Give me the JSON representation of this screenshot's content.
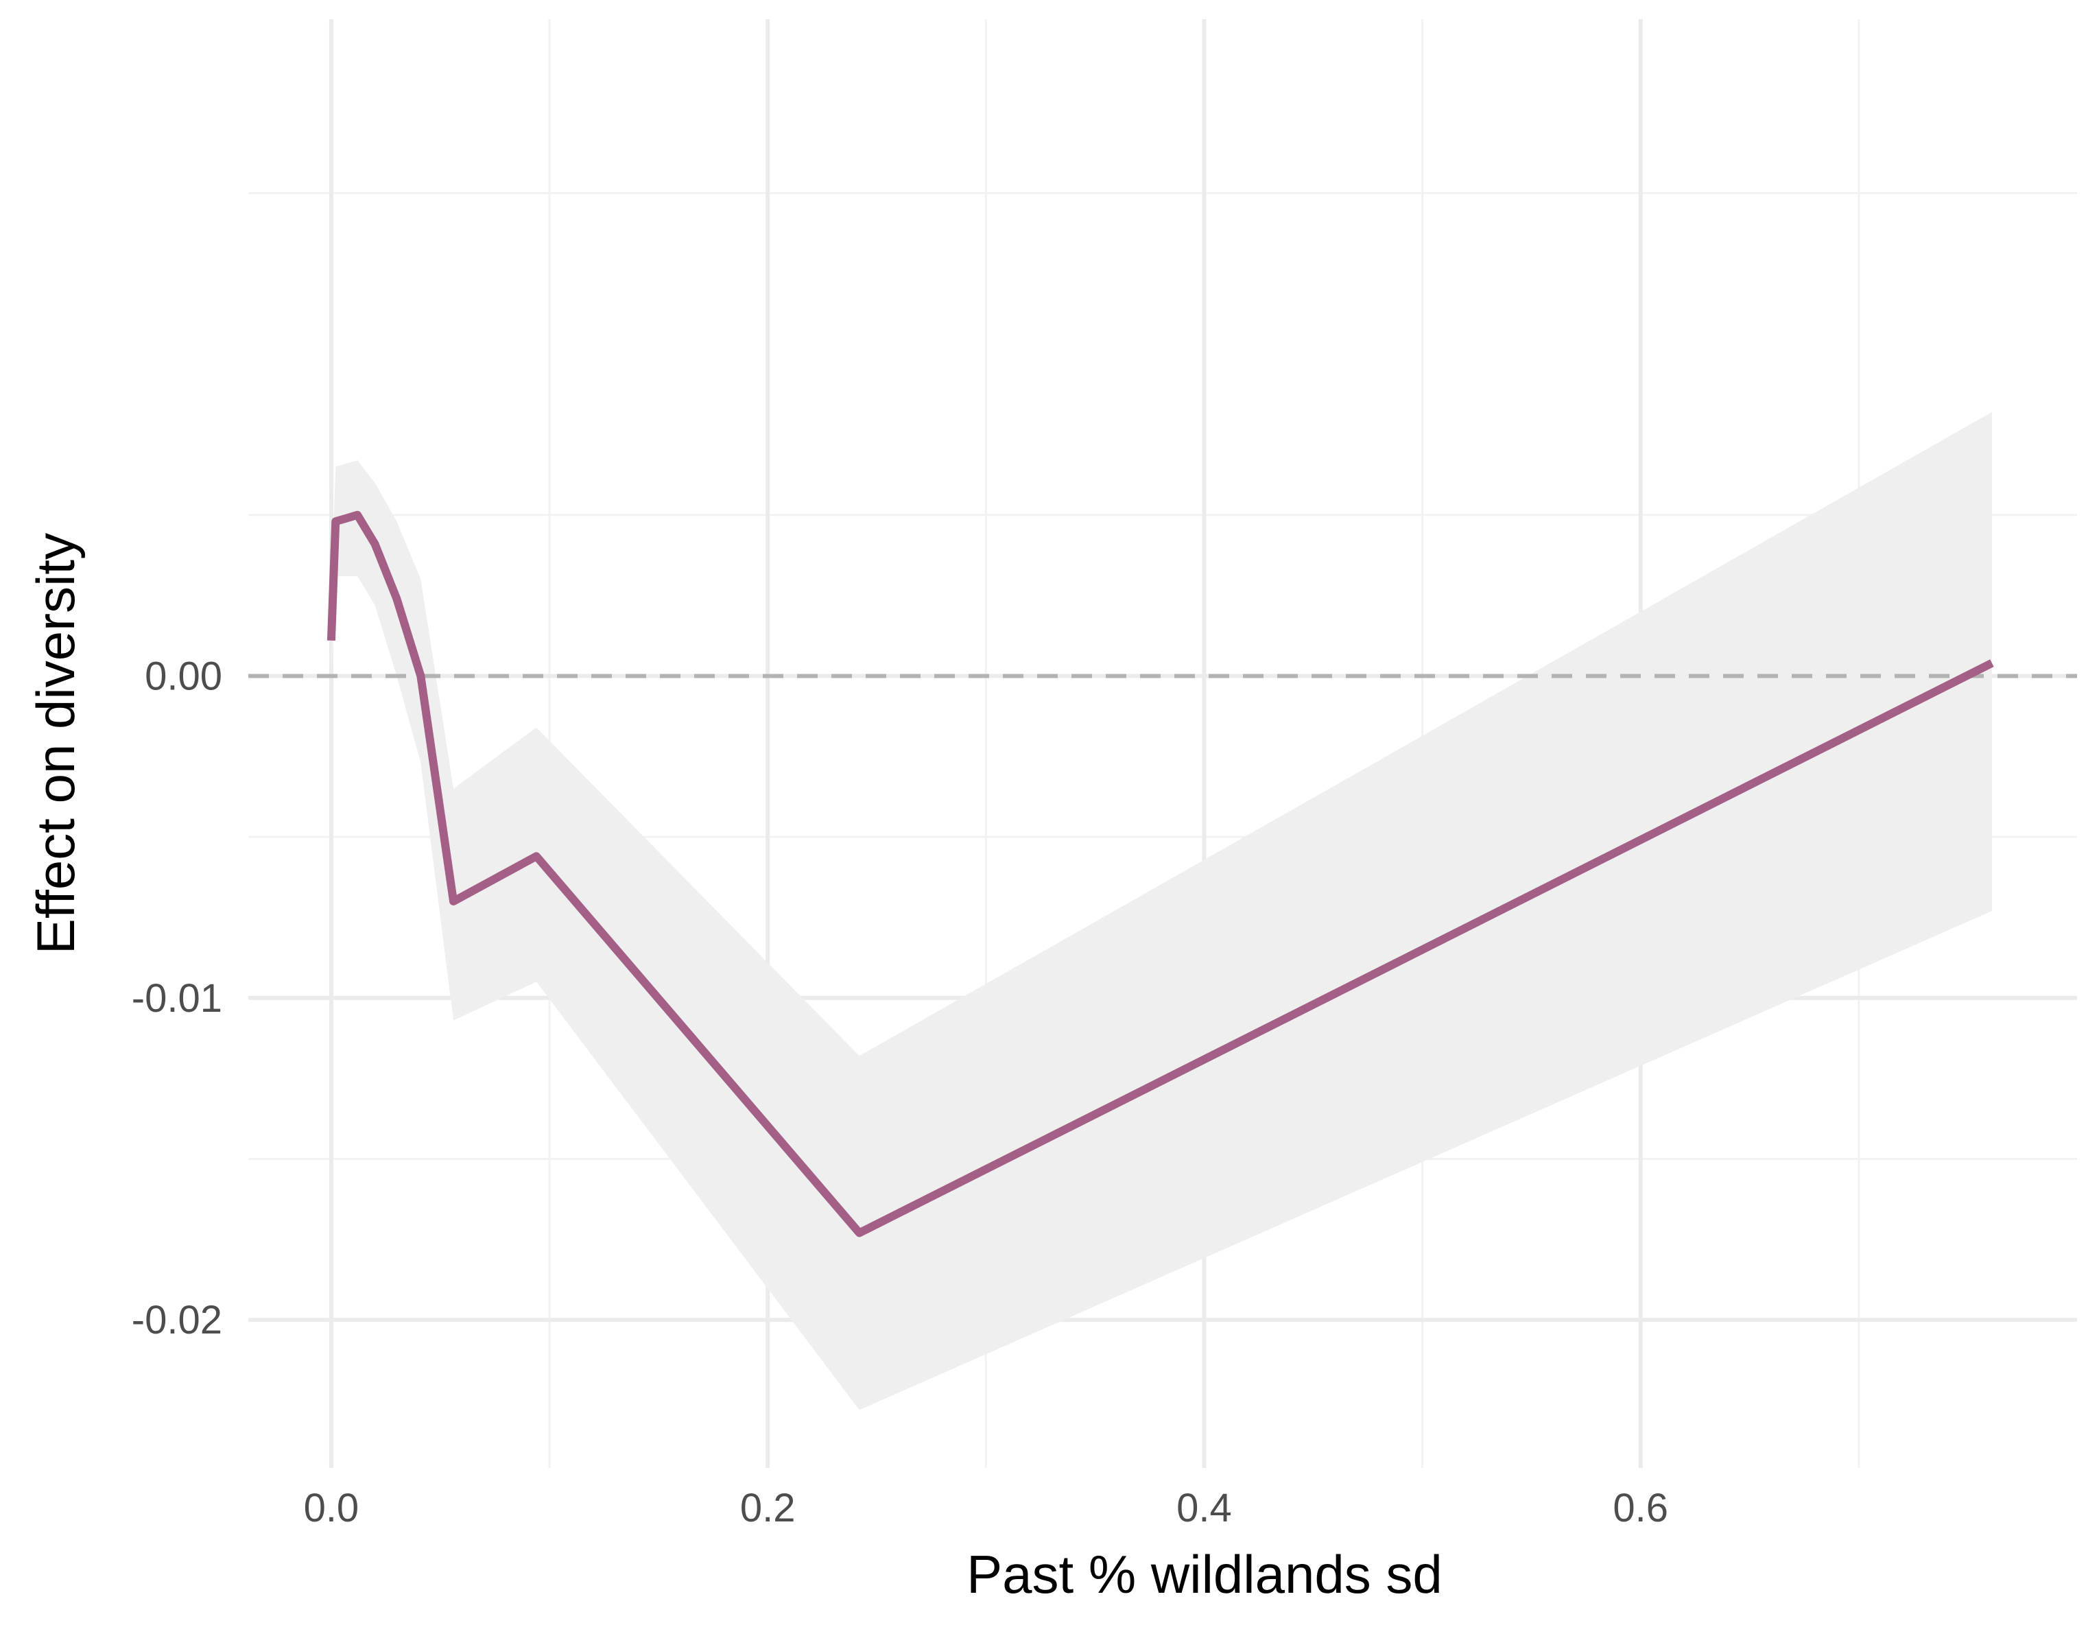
{
  "colors": {
    "line": "#A35F85",
    "ribbon": "#EFEFEF",
    "grid_major": "#EBEBEB",
    "grid_minor": "#F2F2F2",
    "reference_line": "#B3B3B3"
  },
  "chart_data": {
    "type": "line",
    "title": "",
    "xlabel": "Past % wildlands sd",
    "ylabel": "Effect on diversity",
    "xlim": [
      -0.038,
      0.8
    ],
    "ylim": [
      -0.0246,
      0.0204
    ],
    "x_ticks": [
      0.0,
      0.2,
      0.4,
      0.6
    ],
    "x_tick_labels": [
      "0.0",
      "0.2",
      "0.4",
      "0.6"
    ],
    "y_ticks": [
      -0.02,
      -0.01,
      0.0
    ],
    "y_tick_labels": [
      "-0.02",
      "-0.01",
      "0.00"
    ],
    "grid": true,
    "legend": "none",
    "reference_line": {
      "y": 0.0,
      "style": "dashed"
    },
    "series": [
      {
        "x": [
          0.0,
          0.002,
          0.012,
          0.02,
          0.03,
          0.041,
          0.056,
          0.094,
          0.242,
          0.761
        ],
        "y": [
          0.0011,
          0.0048,
          0.005,
          0.0041,
          0.0024,
          0.0,
          -0.007,
          -0.0056,
          -0.0173,
          0.0004
        ],
        "lower": [
          -0.0004,
          0.0031,
          0.0031,
          0.0022,
          0.0,
          -0.0027,
          -0.0107,
          -0.0095,
          -0.0228,
          -0.0073
        ],
        "upper": [
          0.0026,
          0.0065,
          0.0067,
          0.006,
          0.0048,
          0.003,
          -0.0035,
          -0.0016,
          -0.0118,
          0.0082
        ]
      }
    ]
  }
}
